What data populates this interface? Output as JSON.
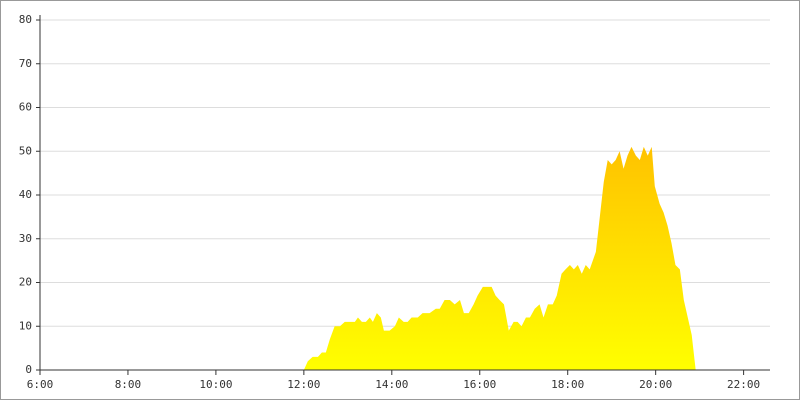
{
  "chart_data": {
    "type": "area",
    "x": [
      12.0,
      12.09,
      12.2,
      12.32,
      12.41,
      12.5,
      12.59,
      12.7,
      12.82,
      12.93,
      13.05,
      13.16,
      13.23,
      13.32,
      13.41,
      13.5,
      13.57,
      13.66,
      13.75,
      13.82,
      13.95,
      14.07,
      14.16,
      14.27,
      14.36,
      14.45,
      14.59,
      14.7,
      14.86,
      15.0,
      15.09,
      15.2,
      15.32,
      15.43,
      15.55,
      15.64,
      15.75,
      15.86,
      15.95,
      16.07,
      16.18,
      16.27,
      16.36,
      16.45,
      16.55,
      16.66,
      16.77,
      16.86,
      16.95,
      17.05,
      17.14,
      17.25,
      17.36,
      17.45,
      17.55,
      17.66,
      17.75,
      17.86,
      17.95,
      18.05,
      18.14,
      18.23,
      18.32,
      18.41,
      18.5,
      18.64,
      18.73,
      18.82,
      18.91,
      19.0,
      19.09,
      19.18,
      19.27,
      19.36,
      19.45,
      19.55,
      19.64,
      19.73,
      19.82,
      19.91,
      19.98,
      20.09,
      20.18,
      20.27,
      20.36,
      20.45,
      20.55,
      20.64,
      20.73,
      20.82,
      20.91
    ],
    "values": [
      0,
      2,
      3,
      3,
      4,
      4,
      7,
      10,
      10,
      11,
      11,
      11,
      12,
      11,
      11,
      12,
      11,
      13,
      12,
      9,
      9,
      10,
      12,
      11,
      11,
      12,
      12,
      13,
      13,
      14,
      14,
      16,
      16,
      15,
      16,
      13,
      13,
      15,
      17,
      19,
      19,
      19,
      17,
      16,
      15,
      9,
      11,
      11,
      10,
      12,
      12,
      14,
      15,
      12,
      15,
      15,
      17,
      22,
      23,
      24,
      23,
      24,
      22,
      24,
      23,
      27,
      35,
      43,
      48,
      47,
      48,
      50,
      46,
      49,
      51,
      49,
      48,
      51,
      49,
      51,
      42,
      38,
      36,
      33,
      29,
      24,
      23,
      16,
      12,
      8,
      0
    ],
    "gradient": [
      "#ffff00",
      "#ffa000"
    ],
    "xlim": [
      6,
      22.6
    ],
    "xticks": [
      {
        "value": 6,
        "label": "6:00"
      },
      {
        "value": 8,
        "label": "8:00"
      },
      {
        "value": 10,
        "label": "10:00"
      },
      {
        "value": 12,
        "label": "12:00"
      },
      {
        "value": 14,
        "label": "14:00"
      },
      {
        "value": 16,
        "label": "16:00"
      },
      {
        "value": 18,
        "label": "18:00"
      },
      {
        "value": 20,
        "label": "20:00"
      },
      {
        "value": 22,
        "label": "22:00"
      }
    ],
    "ylim": [
      0,
      80
    ],
    "yticks": [
      0,
      10,
      20,
      30,
      40,
      50,
      60,
      70,
      80
    ],
    "grid": true
  }
}
